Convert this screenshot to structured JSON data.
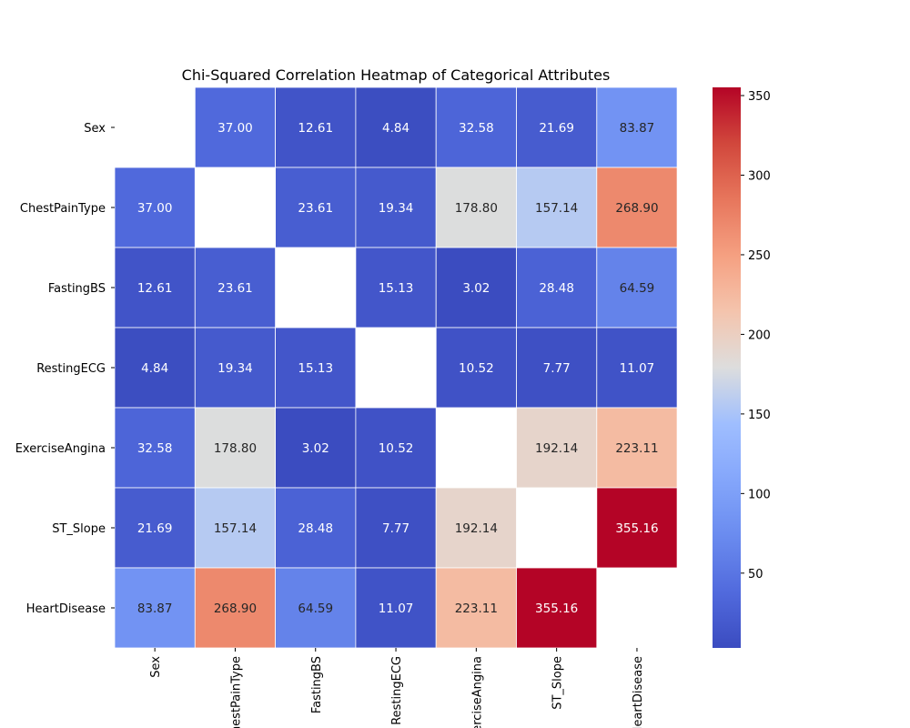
{
  "chart_data": {
    "type": "heatmap",
    "title": "Chi-Squared Correlation Heatmap of Categorical Attributes",
    "row_labels": [
      "Sex",
      "ChestPainType",
      "FastingBS",
      "RestingECG",
      "ExerciseAngina",
      "ST_Slope",
      "HeartDisease"
    ],
    "col_labels": [
      "Sex",
      "ChestPainType",
      "FastingBS",
      "RestingECG",
      "ExerciseAngina",
      "ST_Slope",
      "HeartDisease"
    ],
    "values": [
      [
        null,
        37.0,
        12.61,
        4.84,
        32.58,
        21.69,
        83.87
      ],
      [
        37.0,
        null,
        23.61,
        19.34,
        178.8,
        157.14,
        268.9
      ],
      [
        12.61,
        23.61,
        null,
        15.13,
        3.02,
        28.48,
        64.59
      ],
      [
        4.84,
        19.34,
        15.13,
        null,
        10.52,
        7.77,
        11.07
      ],
      [
        32.58,
        178.8,
        3.02,
        10.52,
        null,
        192.14,
        223.11
      ],
      [
        21.69,
        157.14,
        28.48,
        7.77,
        192.14,
        null,
        355.16
      ],
      [
        83.87,
        268.9,
        64.59,
        11.07,
        223.11,
        355.16,
        null
      ]
    ],
    "value_format": "2 decimals",
    "colormap": "coolwarm",
    "colorbar": {
      "min": 3.02,
      "max": 355.16,
      "ticks": [
        50,
        100,
        150,
        200,
        250,
        300,
        350
      ]
    },
    "colors": {
      "low": "#3b4cc0",
      "mid": "#dddddd",
      "high": "#b40426",
      "cell_border": "#ffffff",
      "label_light": "#ffffff",
      "label_dark": "#262626"
    }
  }
}
